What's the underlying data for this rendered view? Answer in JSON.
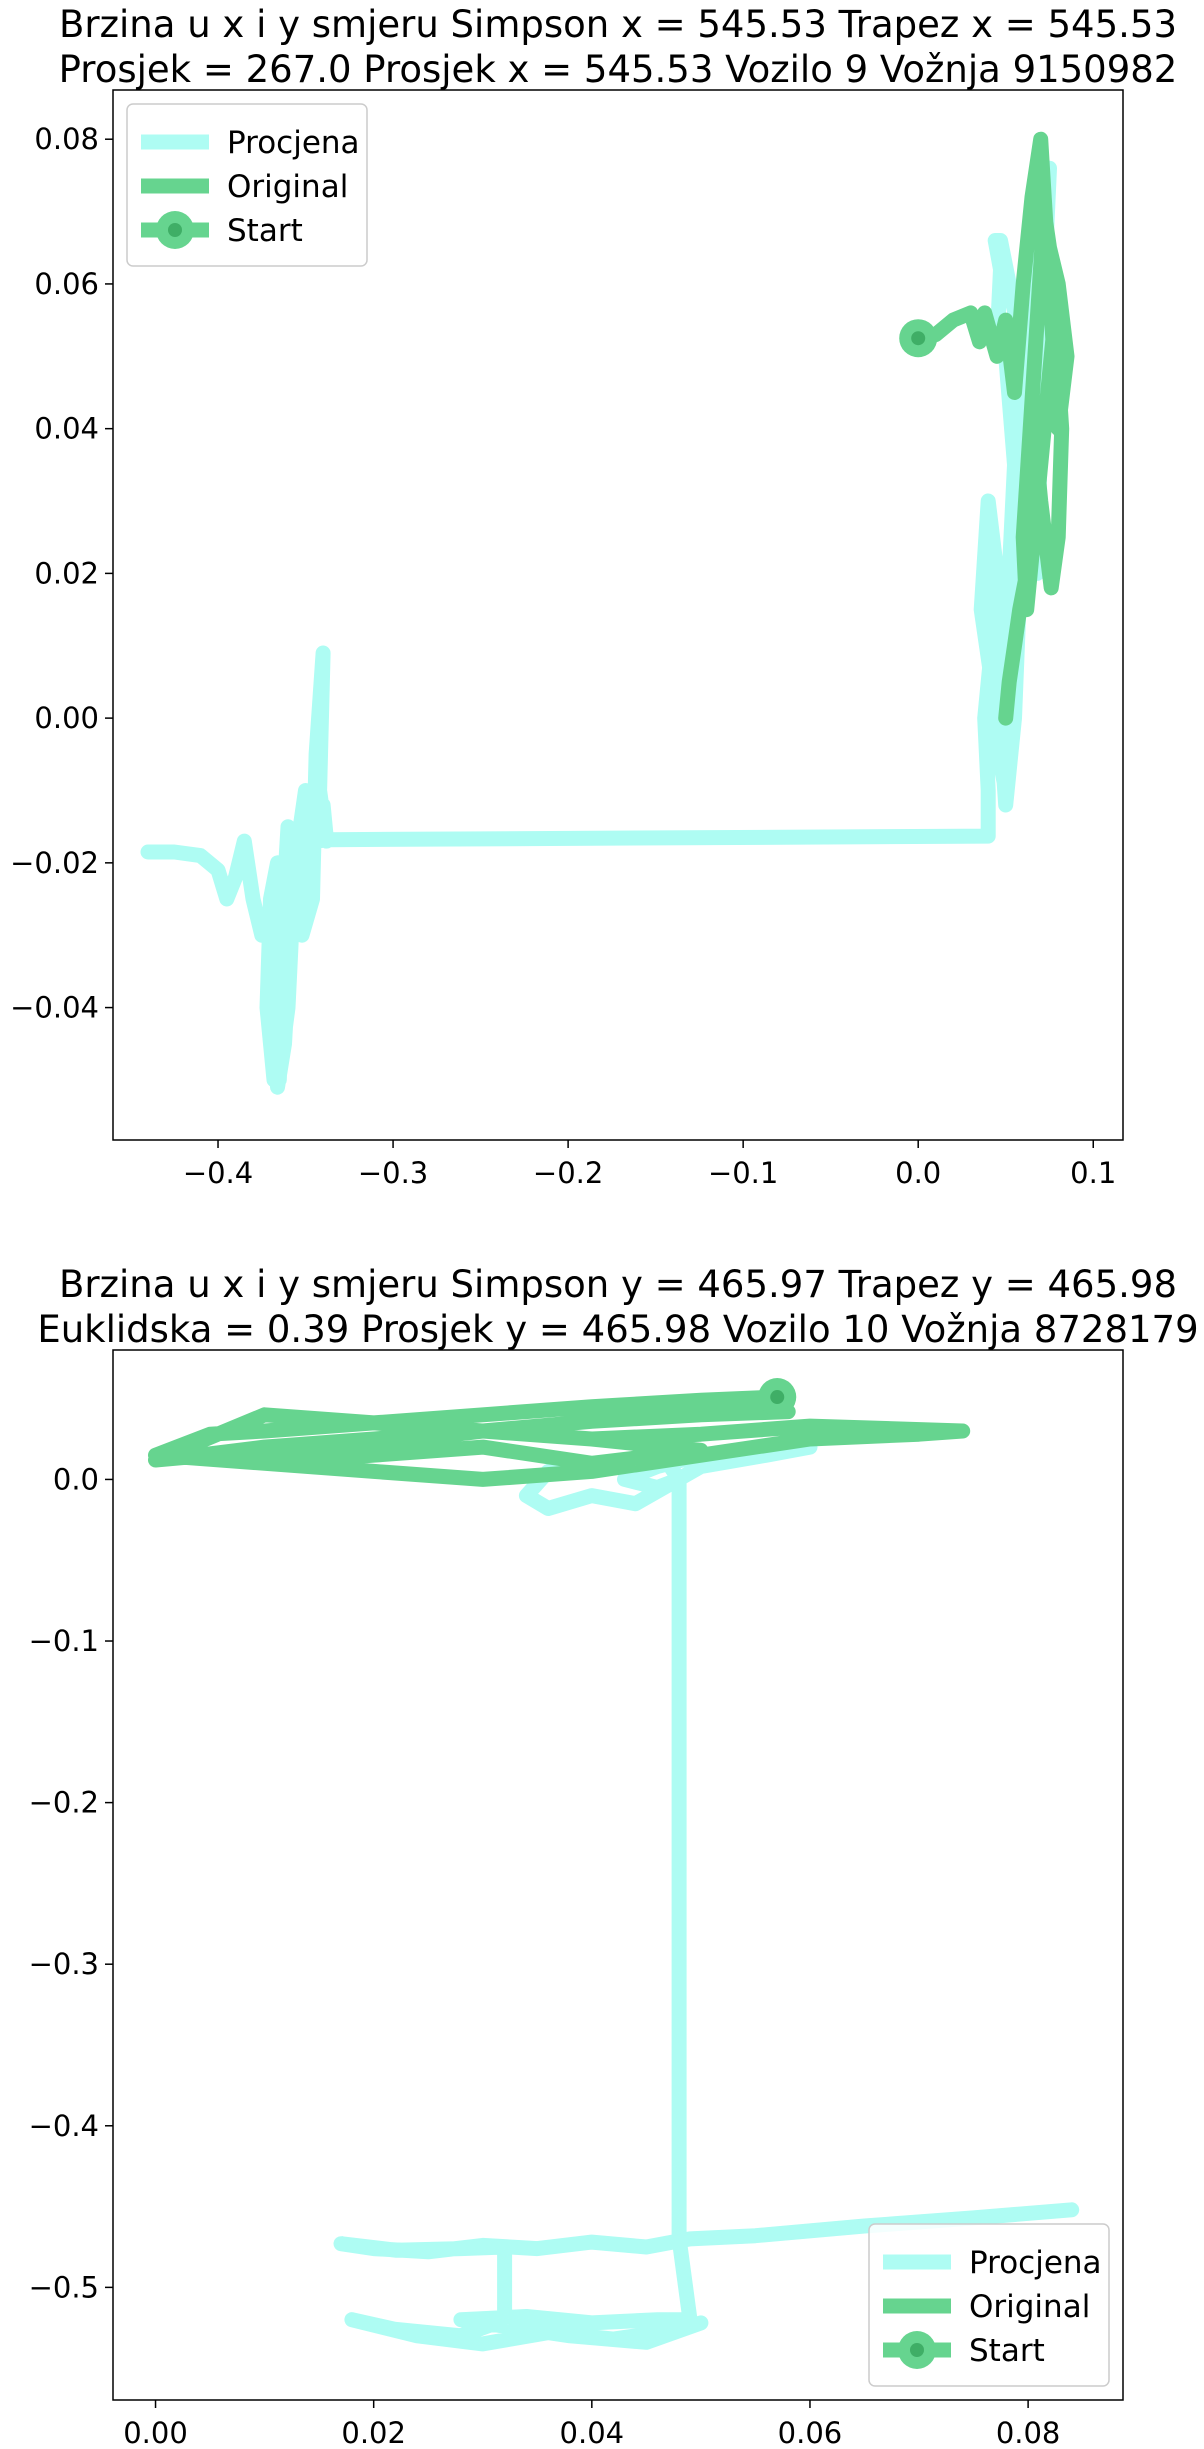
{
  "chart_data": [
    {
      "type": "line",
      "title_lines": [
        "Brzina u x i y smjeru Simpson x = 545.53 Trapez x = 545.53",
        "Prosjek = 267.0 Prosjek x = 545.53 Vozilo 9 Vožnja 9150982"
      ],
      "xlim": [
        -0.46,
        0.117
      ],
      "ylim": [
        -0.0583,
        0.0868
      ],
      "xticks": [
        -0.4,
        -0.3,
        -0.2,
        -0.1,
        0.0,
        0.1
      ],
      "xtick_labels": [
        "−0.4",
        "−0.3",
        "−0.2",
        "−0.1",
        "0.0",
        "0.1"
      ],
      "yticks": [
        -0.04,
        -0.02,
        0.0,
        0.02,
        0.04,
        0.06,
        0.08
      ],
      "ytick_labels": [
        "−0.04",
        "−0.02",
        "0.00",
        "0.02",
        "0.04",
        "0.06",
        "0.08"
      ],
      "grid": false,
      "legend": {
        "position": "upper-left",
        "entries": [
          {
            "label": "Procjena",
            "color": "#aefcf3",
            "marker": false
          },
          {
            "label": "Original",
            "color": "#66d48f",
            "marker": false
          },
          {
            "label": "Start",
            "color": "#66d48f",
            "marker": true
          }
        ]
      },
      "series": [
        {
          "name": "Procjena",
          "color": "#aefcf3",
          "x": [
            -0.44,
            -0.425,
            -0.41,
            -0.4,
            -0.395,
            -0.39,
            -0.385,
            -0.38,
            -0.375,
            -0.37,
            -0.368,
            -0.365,
            -0.362,
            -0.366,
            -0.37,
            -0.372,
            -0.368,
            -0.365,
            -0.36,
            -0.358,
            -0.362,
            -0.366,
            -0.36,
            -0.356,
            -0.35,
            -0.348,
            -0.352,
            -0.346,
            -0.344,
            -0.34,
            -0.342,
            -0.338,
            -0.34,
            -0.343,
            -0.338,
            0.04,
            0.04,
            0.038,
            0.042,
            0.045,
            0.04,
            0.036,
            0.042,
            0.046,
            0.05,
            0.048,
            0.052,
            0.055,
            0.05,
            0.045,
            0.047,
            0.044,
            0.047,
            0.052,
            0.06,
            0.06,
            0.065,
            0.068,
            0.07,
            0.072,
            0.075,
            0.072,
            0.065,
            0.06,
            0.055,
            0.05,
            0.048
          ],
          "y": [
            -0.0185,
            -0.0185,
            -0.019,
            -0.021,
            -0.025,
            -0.022,
            -0.017,
            -0.025,
            -0.03,
            -0.027,
            -0.048,
            -0.05,
            -0.03,
            -0.02,
            -0.025,
            -0.04,
            -0.05,
            -0.035,
            -0.015,
            -0.028,
            -0.045,
            -0.051,
            -0.04,
            -0.02,
            -0.01,
            -0.02,
            -0.03,
            -0.025,
            -0.005,
            0.009,
            -0.01,
            -0.017,
            -0.012,
            -0.017,
            -0.0168,
            -0.0163,
            -0.01,
            0.0,
            0.01,
            0.02,
            0.03,
            0.015,
            0.005,
            -0.005,
            -0.01,
            0.005,
            0.02,
            0.035,
            0.05,
            0.052,
            0.062,
            0.066,
            0.066,
            0.06,
            0.05,
            0.04,
            0.03,
            0.02,
            0.04,
            0.06,
            0.076,
            0.07,
            0.05,
            0.03,
            0.0,
            -0.012,
            -0.005
          ]
        },
        {
          "name": "Original",
          "color": "#66d48f",
          "x": [
            0.0,
            0.01,
            0.02,
            0.03,
            0.035,
            0.038,
            0.045,
            0.05,
            0.055,
            0.06,
            0.065,
            0.07,
            0.075,
            0.08,
            0.085,
            0.08,
            0.075,
            0.072,
            0.068,
            0.064,
            0.06,
            0.062,
            0.068,
            0.074,
            0.078,
            0.082,
            0.08,
            0.076,
            0.07,
            0.066,
            0.062,
            0.058,
            0.055,
            0.052,
            0.05
          ],
          "y": [
            0.0525,
            0.053,
            0.055,
            0.056,
            0.052,
            0.056,
            0.05,
            0.055,
            0.045,
            0.06,
            0.072,
            0.08,
            0.06,
            0.04,
            0.05,
            0.06,
            0.065,
            0.07,
            0.055,
            0.04,
            0.025,
            0.015,
            0.03,
            0.045,
            0.055,
            0.04,
            0.025,
            0.018,
            0.03,
            0.04,
            0.02,
            0.015,
            0.01,
            0.005,
            0.0
          ]
        }
      ],
      "start_point": {
        "x": 0.0,
        "y": 0.0525
      }
    },
    {
      "type": "line",
      "title_lines": [
        "Brzina u x i y smjeru Simpson y = 465.97 Trapez y = 465.98",
        "Euklidska = 0.39 Prosjek y = 465.98 Vozilo 10 Vožnja 8728179"
      ],
      "xlim": [
        -0.0039,
        0.0887
      ],
      "ylim": [
        -0.5697,
        0.0801
      ],
      "xticks": [
        0.0,
        0.02,
        0.04,
        0.06,
        0.08
      ],
      "xtick_labels": [
        "0.00",
        "0.02",
        "0.04",
        "0.06",
        "0.08"
      ],
      "yticks": [
        -0.5,
        -0.4,
        -0.3,
        -0.2,
        -0.1,
        0.0
      ],
      "ytick_labels": [
        "−0.5",
        "−0.4",
        "−0.3",
        "−0.2",
        "−0.1",
        "0.0"
      ],
      "grid": false,
      "legend": {
        "position": "lower-right",
        "entries": [
          {
            "label": "Procjena",
            "color": "#aefcf3",
            "marker": false
          },
          {
            "label": "Original",
            "color": "#66d48f",
            "marker": false
          },
          {
            "label": "Start",
            "color": "#66d48f",
            "marker": true
          }
        ]
      },
      "series": [
        {
          "name": "Procjena",
          "color": "#aefcf3",
          "x": [
            0.084,
            0.075,
            0.065,
            0.055,
            0.049,
            0.045,
            0.04,
            0.035,
            0.03,
            0.025,
            0.02,
            0.017,
            0.022,
            0.028,
            0.032,
            0.032,
            0.032,
            0.028,
            0.022,
            0.018,
            0.024,
            0.03,
            0.036,
            0.042,
            0.048,
            0.05,
            0.045,
            0.038,
            0.032,
            0.028,
            0.034,
            0.04,
            0.046,
            0.049,
            0.048,
            0.048,
            0.048,
            0.047,
            0.045,
            0.04,
            0.036,
            0.034,
            0.036,
            0.04,
            0.044,
            0.05,
            0.056,
            0.06,
            0.057,
            0.05,
            0.046,
            0.043,
            0.046,
            0.048
          ],
          "y": [
            -0.452,
            -0.457,
            -0.462,
            -0.468,
            -0.47,
            -0.475,
            -0.472,
            -0.476,
            -0.474,
            -0.478,
            -0.476,
            -0.473,
            -0.477,
            -0.476,
            -0.475,
            -0.5,
            -0.52,
            -0.53,
            -0.526,
            -0.52,
            -0.53,
            -0.535,
            -0.528,
            -0.532,
            -0.526,
            -0.522,
            -0.534,
            -0.53,
            -0.524,
            -0.52,
            -0.518,
            -0.522,
            -0.52,
            -0.52,
            -0.47,
            -0.2,
            0.0,
            0.01,
            0.012,
            0.01,
            0.005,
            -0.01,
            -0.018,
            -0.01,
            -0.015,
            0.008,
            0.015,
            0.02,
            0.02,
            0.015,
            0.008,
            0.0,
            -0.005,
            0.0
          ]
        },
        {
          "name": "Original",
          "color": "#66d48f",
          "x": [
            0.057,
            0.05,
            0.04,
            0.03,
            0.02,
            0.01,
            0.005,
            0.0,
            0.01,
            0.02,
            0.03,
            0.04,
            0.05,
            0.06,
            0.07,
            0.074,
            0.06,
            0.05,
            0.04,
            0.03,
            0.02,
            0.01,
            0.004,
            0.01,
            0.02,
            0.03,
            0.04,
            0.05,
            0.04,
            0.03,
            0.02,
            0.01,
            0.0,
            0.01,
            0.02,
            0.03,
            0.04,
            0.05,
            0.058
          ],
          "y": [
            0.051,
            0.049,
            0.045,
            0.04,
            0.035,
            0.03,
            0.028,
            0.015,
            0.01,
            0.005,
            0.0,
            0.005,
            0.015,
            0.025,
            0.028,
            0.03,
            0.033,
            0.028,
            0.025,
            0.03,
            0.025,
            0.02,
            0.015,
            0.01,
            0.015,
            0.02,
            0.01,
            0.018,
            0.025,
            0.03,
            0.035,
            0.04,
            0.012,
            0.018,
            0.022,
            0.03,
            0.036,
            0.04,
            0.042
          ]
        }
      ],
      "start_point": {
        "x": 0.057,
        "y": 0.051
      }
    }
  ]
}
